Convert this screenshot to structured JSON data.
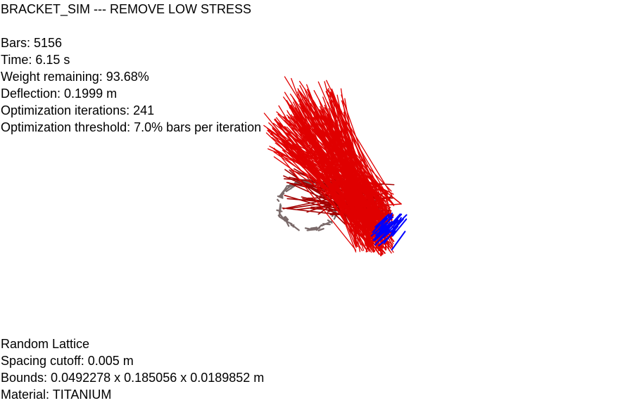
{
  "window": {
    "title": "BRACKET_SIM --- REMOVE LOW STRESS"
  },
  "stats": {
    "bars": "Bars: 5156",
    "time": "Time: 6.15 s",
    "weight_remaining": "Weight remaining: 93.68%",
    "deflection": "Deflection: 0.1999 m",
    "iterations": "Optimization iterations: 241",
    "threshold": "Optimization threshold: 7.0% bars per iteration"
  },
  "info": {
    "lattice": "Random Lattice",
    "spacing": "Spacing cutoff: 0.005 m",
    "bounds": "Bounds: 0.0492278 x 0.185056 x 0.0189852 m",
    "material": "Material: TITANIUM"
  },
  "colors": {
    "background": "#ffffff",
    "bar_stress": "#e00000",
    "bar_dark": "#a30000",
    "fixed_support": "#7a6a6a",
    "load_arrows": "#0000ff"
  }
}
